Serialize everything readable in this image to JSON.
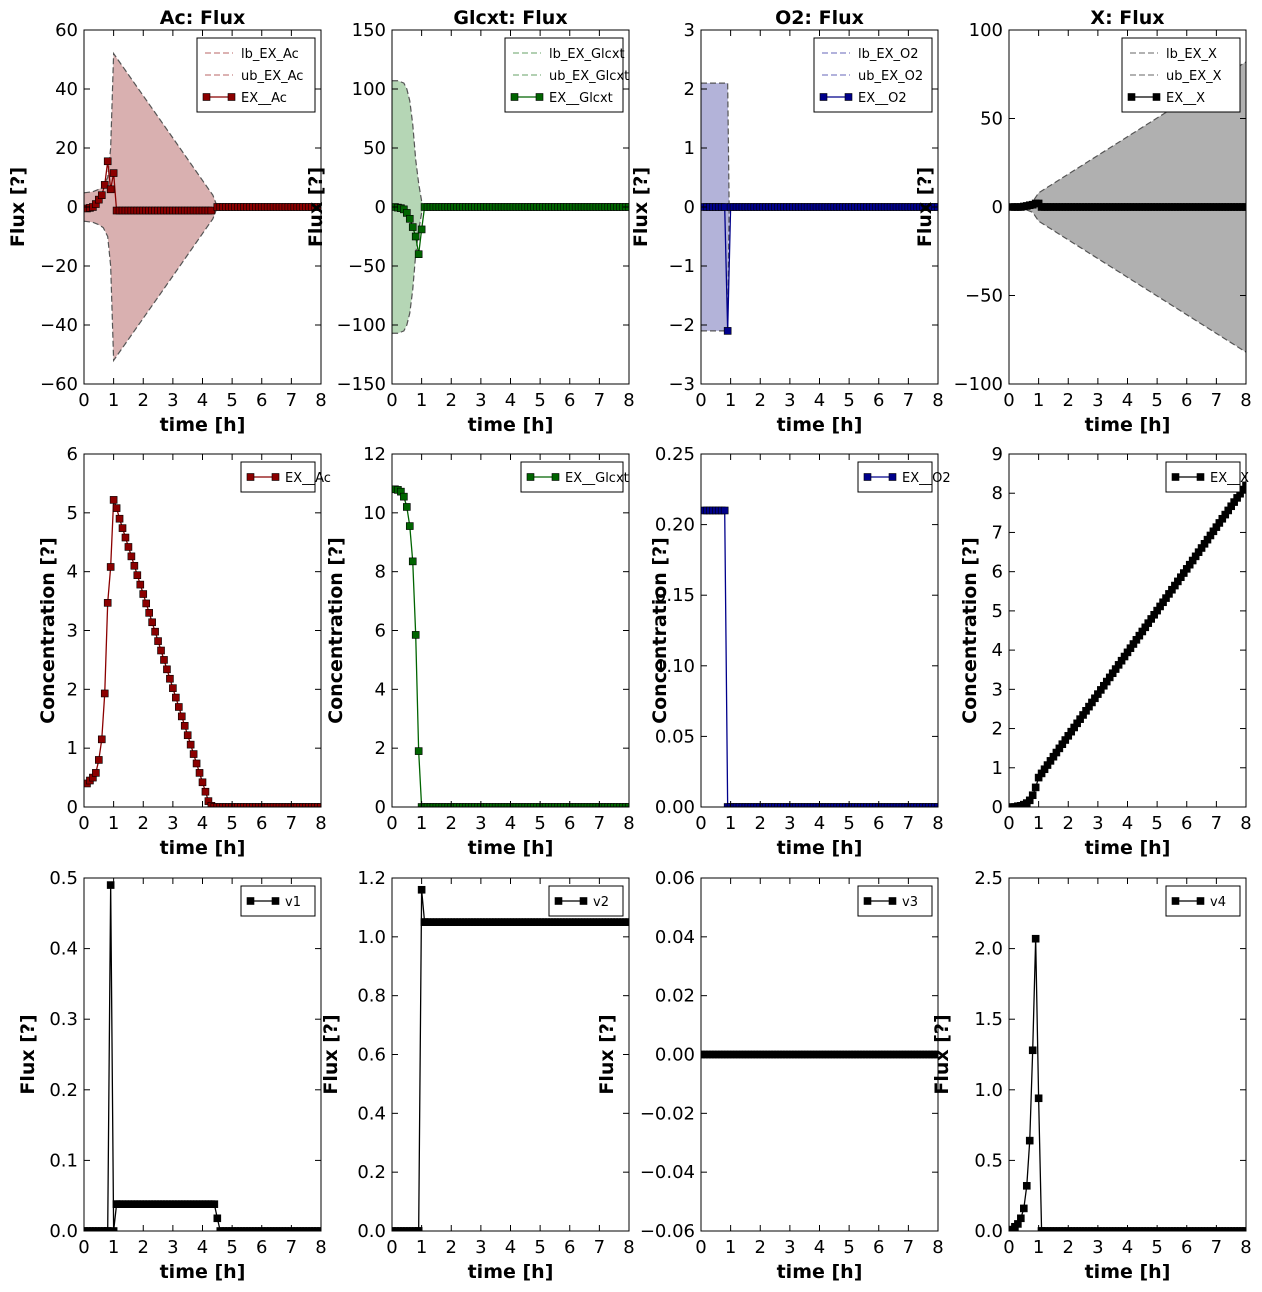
{
  "chart_data": [
    {
      "id": "ac_flux",
      "type": "line",
      "title": "Ac: Flux",
      "xlabel": "time [h]",
      "ylabel": "Flux [?]",
      "xlim": [
        0,
        8
      ],
      "ylim": [
        -60,
        60
      ],
      "xticks": [
        0,
        1,
        2,
        3,
        4,
        5,
        6,
        7,
        8
      ],
      "yticks": [
        -60,
        -40,
        -20,
        0,
        20,
        40,
        60
      ],
      "ytick_labels": [
        "−60",
        "−40",
        "−20",
        "0",
        "20",
        "40",
        "60"
      ],
      "color": "#8b0000",
      "fill": "#d9b0b0",
      "legend": [
        "lb_EX_Ac",
        "ub_EX_Ac",
        "EX__Ac"
      ],
      "bounds_x": [
        0,
        0.3,
        0.5,
        0.65,
        0.8,
        0.9,
        1.0,
        2.0,
        3.0,
        4.0,
        4.35,
        4.5,
        8
      ],
      "bounds_ub": [
        4.8,
        5.2,
        6,
        7,
        10,
        20,
        52,
        37.7,
        23.4,
        9,
        4,
        0,
        0
      ],
      "series": [
        {
          "name": "EX__Ac",
          "x": [
            0.1,
            0.2,
            0.3,
            0.4,
            0.5,
            0.6,
            0.7,
            0.8,
            0.9,
            1.0,
            1.1
          ],
          "y": [
            -0.5,
            -0.3,
            0,
            1,
            2.5,
            4,
            7.5,
            15.5,
            6,
            11.5,
            -1.2
          ]
        }
      ],
      "line_rest": {
        "x0": 1.1,
        "x1": 4.3,
        "y": -1.2,
        "x2": 4.5,
        "x3": 8,
        "y2": 0
      },
      "ub_marker_dash": true
    },
    {
      "id": "glcxt_flux",
      "type": "line",
      "title": "Glcxt: Flux",
      "xlabel": "time [h]",
      "ylabel": "Flux [?]",
      "xlim": [
        0,
        8
      ],
      "ylim": [
        -150,
        150
      ],
      "xticks": [
        0,
        1,
        2,
        3,
        4,
        5,
        6,
        7,
        8
      ],
      "yticks": [
        -150,
        -100,
        -50,
        0,
        50,
        100,
        150
      ],
      "ytick_labels": [
        "−150",
        "−100",
        "−50",
        "0",
        "50",
        "100",
        "150"
      ],
      "color": "#006400",
      "fill": "#b5d6b5",
      "legend": [
        "lb_EX_Glcxt",
        "ub_EX_Glcxt",
        "EX__Glcxt"
      ],
      "bounds_x": [
        0,
        0.2,
        0.4,
        0.5,
        0.6,
        0.7,
        0.8,
        0.9,
        1.0,
        1.1,
        8
      ],
      "bounds_ub": [
        107,
        107,
        105,
        100,
        90,
        70,
        40,
        20,
        5,
        0,
        0
      ],
      "series": [
        {
          "name": "EX__Glcxt",
          "x": [
            0.1,
            0.2,
            0.3,
            0.4,
            0.5,
            0.6,
            0.7,
            0.8,
            0.9,
            1.0,
            1.1
          ],
          "y": [
            0,
            -0.5,
            -1,
            -2,
            -5,
            -10,
            -17,
            -25,
            -40,
            -19,
            0
          ]
        }
      ],
      "line_rest": {
        "x0": 1.1,
        "x1": 8,
        "y": 0
      }
    },
    {
      "id": "o2_flux",
      "type": "line",
      "title": "O2: Flux",
      "xlabel": "time [h]",
      "ylabel": "Flux [?]",
      "xlim": [
        0,
        8
      ],
      "ylim": [
        -3,
        3
      ],
      "xticks": [
        0,
        1,
        2,
        3,
        4,
        5,
        6,
        7,
        8
      ],
      "yticks": [
        -3,
        -2,
        -1,
        0,
        1,
        2,
        3
      ],
      "ytick_labels": [
        "−3",
        "−2",
        "−1",
        "0",
        "1",
        "2",
        "3"
      ],
      "color": "#00008b",
      "fill": "#b3b3d9",
      "legend": [
        "lb_EX_O2",
        "ub_EX_O2",
        "EX__O2"
      ],
      "bounds_x": [
        0,
        0.9,
        0.95,
        8
      ],
      "bounds_ub": [
        2.1,
        2.1,
        0,
        0
      ],
      "series": [
        {
          "name": "EX__O2",
          "x": [
            0.1,
            0.2,
            0.3,
            0.4,
            0.5,
            0.6,
            0.7,
            0.8,
            0.9,
            1.0
          ],
          "y": [
            0,
            0,
            0,
            0,
            0,
            0,
            0,
            0,
            -2.1,
            0
          ]
        }
      ],
      "line_rest": {
        "x0": 1.0,
        "x1": 8,
        "y": 0
      }
    },
    {
      "id": "x_flux",
      "type": "line",
      "title": "X: Flux",
      "xlabel": "time [h]",
      "ylabel": "Flux [?]",
      "xlim": [
        0,
        8
      ],
      "ylim": [
        -100,
        100
      ],
      "xticks": [
        0,
        1,
        2,
        3,
        4,
        5,
        6,
        7,
        8
      ],
      "yticks": [
        -100,
        -50,
        0,
        50,
        100
      ],
      "ytick_labels": [
        "−100",
        "−50",
        "0",
        "50",
        "100"
      ],
      "color": "#000000",
      "fill": "#b0b0b0",
      "legend": [
        "lb_EX_X",
        "ub_EX_X",
        "EX__X"
      ],
      "bounds_x": [
        0,
        0.5,
        0.8,
        1.0,
        8
      ],
      "bounds_ub": [
        0.5,
        1,
        3,
        8,
        82
      ],
      "series": [
        {
          "name": "EX__X",
          "x": [
            0.1,
            0.2,
            0.3,
            0.4,
            0.5,
            0.6,
            0.7,
            0.8,
            0.9,
            1.0
          ],
          "y": [
            0,
            0,
            0,
            0,
            0.3,
            0.6,
            1,
            1.3,
            2,
            2
          ]
        }
      ],
      "line_rest": {
        "x0": 1.0,
        "x1": 8,
        "y": 0
      }
    },
    {
      "id": "ac_conc",
      "type": "line",
      "xlabel": "time [h]",
      "ylabel": "Concentration [?]",
      "xlim": [
        0,
        8
      ],
      "ylim": [
        0,
        6
      ],
      "xticks": [
        0,
        1,
        2,
        3,
        4,
        5,
        6,
        7,
        8
      ],
      "yticks": [
        0,
        1,
        2,
        3,
        4,
        5,
        6
      ],
      "color": "#8b0000",
      "legend": [
        "EX__Ac"
      ],
      "series": [
        {
          "name": "EX__Ac",
          "x": [
            0.1,
            0.2,
            0.3,
            0.4,
            0.5,
            0.6,
            0.7,
            0.8,
            0.9,
            1.0,
            1.1,
            1.2,
            1.3,
            1.4,
            1.5,
            1.6,
            1.7,
            1.8,
            1.9,
            2.0,
            2.1,
            2.2,
            2.3,
            2.4,
            2.5,
            2.6,
            2.7,
            2.8,
            2.9,
            3.0,
            3.1,
            3.2,
            3.3,
            3.4,
            3.5,
            3.6,
            3.7,
            3.8,
            3.9,
            4.0,
            4.1,
            4.2,
            4.3,
            4.4
          ],
          "y": [
            0.4,
            0.45,
            0.5,
            0.58,
            0.8,
            1.15,
            1.93,
            3.47,
            4.08,
            5.22,
            5.08,
            4.9,
            4.74,
            4.58,
            4.42,
            4.26,
            4.1,
            3.94,
            3.78,
            3.62,
            3.46,
            3.3,
            3.14,
            2.98,
            2.82,
            2.66,
            2.5,
            2.34,
            2.18,
            2.02,
            1.86,
            1.7,
            1.54,
            1.38,
            1.22,
            1.06,
            0.9,
            0.74,
            0.58,
            0.42,
            0.26,
            0.1,
            0.02,
            0.0
          ]
        }
      ],
      "line_rest": {
        "x0": 4.4,
        "x1": 8,
        "y": 0
      }
    },
    {
      "id": "glcxt_conc",
      "type": "line",
      "xlabel": "time [h]",
      "ylabel": "Concentration [?]",
      "xlim": [
        0,
        8
      ],
      "ylim": [
        0,
        12
      ],
      "xticks": [
        0,
        1,
        2,
        3,
        4,
        5,
        6,
        7,
        8
      ],
      "yticks": [
        0,
        2,
        4,
        6,
        8,
        10,
        12
      ],
      "color": "#006400",
      "legend": [
        "EX__Glcxt"
      ],
      "series": [
        {
          "name": "EX__Glcxt",
          "x": [
            0.1,
            0.2,
            0.3,
            0.4,
            0.5,
            0.6,
            0.7,
            0.8,
            0.9,
            1.0
          ],
          "y": [
            10.8,
            10.78,
            10.72,
            10.55,
            10.2,
            9.55,
            8.35,
            5.85,
            1.9,
            0
          ]
        }
      ],
      "line_rest": {
        "x0": 1.0,
        "x1": 8,
        "y": 0
      }
    },
    {
      "id": "o2_conc",
      "type": "line",
      "xlabel": "time [h]",
      "ylabel": "Concentration [?]",
      "xlim": [
        0,
        8
      ],
      "ylim": [
        0,
        0.25
      ],
      "xticks": [
        0,
        1,
        2,
        3,
        4,
        5,
        6,
        7,
        8
      ],
      "yticks": [
        0,
        0.05,
        0.1,
        0.15,
        0.2,
        0.25
      ],
      "ytick_labels": [
        "0.00",
        "0.05",
        "0.10",
        "0.15",
        "0.20",
        "0.25"
      ],
      "color": "#00008b",
      "legend": [
        "EX__O2"
      ],
      "series": [
        {
          "name": "EX__O2",
          "x": [
            0.1,
            0.2,
            0.3,
            0.4,
            0.5,
            0.6,
            0.7,
            0.8,
            0.9
          ],
          "y": [
            0.21,
            0.21,
            0.21,
            0.21,
            0.21,
            0.21,
            0.21,
            0.21,
            0
          ]
        }
      ],
      "line_rest": {
        "x0": 0.9,
        "x1": 8,
        "y": 0
      }
    },
    {
      "id": "x_conc",
      "type": "line",
      "xlabel": "time [h]",
      "ylabel": "Concentration [?]",
      "xlim": [
        0,
        8
      ],
      "ylim": [
        0,
        9
      ],
      "xticks": [
        0,
        1,
        2,
        3,
        4,
        5,
        6,
        7,
        8
      ],
      "yticks": [
        0,
        1,
        2,
        3,
        4,
        5,
        6,
        7,
        8,
        9
      ],
      "color": "#000000",
      "legend": [
        "EX__X"
      ],
      "series": [
        {
          "name": "EX__X",
          "x": [
            0.1,
            0.2,
            0.3,
            0.4,
            0.5,
            0.6,
            0.7,
            0.8,
            0.9,
            1.0
          ],
          "y": [
            0,
            0,
            0.02,
            0.03,
            0.06,
            0.1,
            0.17,
            0.3,
            0.5,
            0.75
          ]
        }
      ],
      "linear_rest": {
        "x0": 1.0,
        "y0": 0.75,
        "x1": 8,
        "y1": 8.2,
        "step": 0.1
      }
    },
    {
      "id": "v1",
      "type": "line",
      "xlabel": "time [h]",
      "ylabel": "Flux [?]",
      "xlim": [
        0,
        8
      ],
      "ylim": [
        0,
        0.5
      ],
      "xticks": [
        0,
        1,
        2,
        3,
        4,
        5,
        6,
        7,
        8
      ],
      "yticks": [
        0,
        0.1,
        0.2,
        0.3,
        0.4,
        0.5
      ],
      "ytick_labels": [
        "0.0",
        "0.1",
        "0.2",
        "0.3",
        "0.4",
        "0.5"
      ],
      "color": "#000000",
      "legend": [
        "v1"
      ],
      "series": [
        {
          "name": "v1",
          "x": [
            0.8,
            0.9,
            1.0,
            1.1
          ],
          "y": [
            0,
            0.49,
            0,
            0.038
          ]
        }
      ],
      "segments": [
        {
          "x0": 0,
          "x1": 0.8,
          "y": 0
        },
        {
          "x0": 1.1,
          "x1": 4.4,
          "y": 0.038
        },
        {
          "x0": 4.6,
          "x1": 8,
          "y": 0
        }
      ],
      "extra_points": {
        "x": [
          4.5
        ],
        "y": [
          0.018
        ]
      }
    },
    {
      "id": "v2",
      "type": "line",
      "xlabel": "time [h]",
      "ylabel": "Flux [?]",
      "xlim": [
        0,
        8
      ],
      "ylim": [
        0,
        1.2
      ],
      "xticks": [
        0,
        1,
        2,
        3,
        4,
        5,
        6,
        7,
        8
      ],
      "yticks": [
        0,
        0.2,
        0.4,
        0.6,
        0.8,
        1.0,
        1.2
      ],
      "ytick_labels": [
        "0.0",
        "0.2",
        "0.4",
        "0.6",
        "0.8",
        "1.0",
        "1.2"
      ],
      "color": "#000000",
      "legend": [
        "v2"
      ],
      "series": [
        {
          "name": "v2",
          "x": [
            0.9,
            1.0,
            1.1
          ],
          "y": [
            0,
            1.16,
            1.05
          ]
        }
      ],
      "segments": [
        {
          "x0": 0,
          "x1": 0.9,
          "y": 0
        },
        {
          "x0": 1.1,
          "x1": 8,
          "y": 1.05
        }
      ]
    },
    {
      "id": "v3",
      "type": "line",
      "xlabel": "time [h]",
      "ylabel": "Flux [?]",
      "xlim": [
        0,
        8
      ],
      "ylim": [
        -0.06,
        0.06
      ],
      "xticks": [
        0,
        1,
        2,
        3,
        4,
        5,
        6,
        7,
        8
      ],
      "yticks": [
        -0.06,
        -0.04,
        -0.02,
        0,
        0.02,
        0.04,
        0.06
      ],
      "ytick_labels": [
        "−0.06",
        "−0.04",
        "−0.02",
        "0.00",
        "0.02",
        "0.04",
        "0.06"
      ],
      "color": "#000000",
      "legend": [
        "v3"
      ],
      "series": [
        {
          "name": "v3",
          "x": [],
          "y": []
        }
      ],
      "segments": [
        {
          "x0": 0,
          "x1": 8,
          "y": 0
        }
      ]
    },
    {
      "id": "v4",
      "type": "line",
      "xlabel": "time [h]",
      "ylabel": "Flux [?]",
      "xlim": [
        0,
        8
      ],
      "ylim": [
        0,
        2.5
      ],
      "xticks": [
        0,
        1,
        2,
        3,
        4,
        5,
        6,
        7,
        8
      ],
      "yticks": [
        0,
        0.5,
        1.0,
        1.5,
        2.0,
        2.5
      ],
      "ytick_labels": [
        "0.0",
        "0.5",
        "1.0",
        "1.5",
        "2.0",
        "2.5"
      ],
      "color": "#000000",
      "legend": [
        "v4"
      ],
      "series": [
        {
          "name": "v4",
          "x": [
            0.1,
            0.2,
            0.3,
            0.4,
            0.5,
            0.6,
            0.7,
            0.8,
            0.9,
            1.0,
            1.1
          ],
          "y": [
            0.01,
            0.03,
            0.05,
            0.09,
            0.16,
            0.32,
            0.64,
            1.28,
            2.07,
            0.94,
            0
          ]
        }
      ],
      "segments": [
        {
          "x0": 1.1,
          "x1": 8,
          "y": 0
        }
      ]
    }
  ]
}
